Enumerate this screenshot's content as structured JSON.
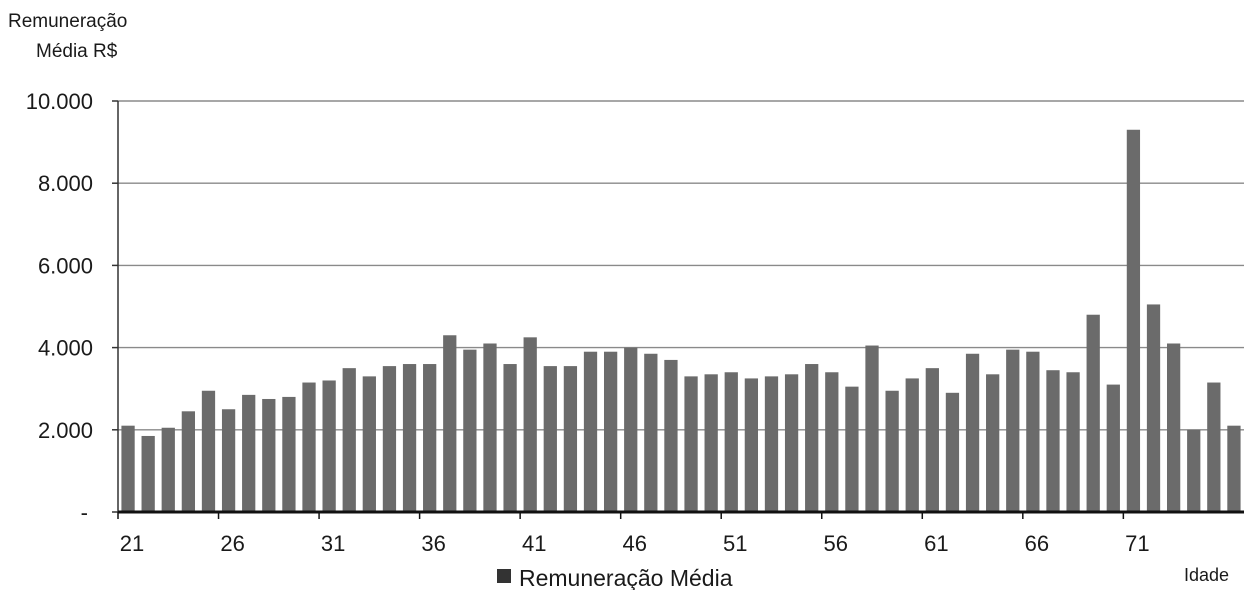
{
  "chart_data": {
    "type": "bar",
    "title": "",
    "ylabel": [
      "Remuneração",
      "Média R$"
    ],
    "xlabel": "Idade",
    "ylim": [
      0,
      10000
    ],
    "yticks": [
      "-",
      "2.000",
      "4.000",
      "6.000",
      "8.000",
      "10.000"
    ],
    "xtick_labels": [
      "21",
      "26",
      "31",
      "36",
      "41",
      "46",
      "51",
      "56",
      "61",
      "66",
      "71"
    ],
    "grid": true,
    "legend_position": "bottom",
    "series": [
      {
        "name": "Remuneração Média",
        "color": "#6b6b6b",
        "x": [
          21,
          22,
          23,
          24,
          25,
          26,
          27,
          28,
          29,
          30,
          31,
          32,
          33,
          34,
          35,
          36,
          37,
          38,
          39,
          40,
          41,
          42,
          43,
          44,
          45,
          46,
          47,
          48,
          49,
          50,
          51,
          52,
          53,
          54,
          55,
          56,
          57,
          58,
          59,
          60,
          61,
          62,
          63,
          64,
          65,
          66,
          67,
          68,
          69,
          70,
          71,
          72,
          73,
          74,
          75,
          76
        ],
        "values": [
          2100,
          1850,
          2050,
          2450,
          2950,
          2500,
          2850,
          2750,
          2800,
          3150,
          3200,
          3500,
          3300,
          3550,
          3600,
          3600,
          4300,
          3950,
          4100,
          3600,
          4250,
          3550,
          3550,
          3900,
          3900,
          4000,
          3850,
          3700,
          3300,
          3350,
          3400,
          3250,
          3300,
          3350,
          3600,
          3400,
          3050,
          4050,
          2950,
          3250,
          3500,
          2900,
          3850,
          3350,
          3950,
          3900,
          3450,
          3400,
          4800,
          3100,
          9300,
          5050,
          4100,
          2000,
          3150,
          2100
        ]
      }
    ]
  }
}
